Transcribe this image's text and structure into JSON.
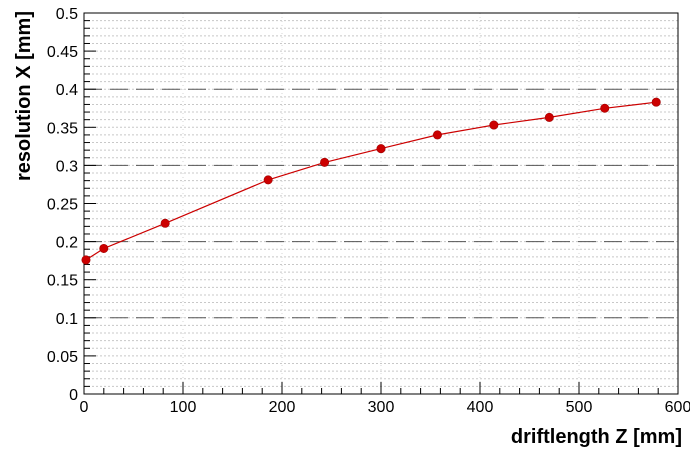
{
  "chart_data": {
    "type": "line",
    "title": "",
    "xlabel": "driftlength Z [mm]",
    "ylabel": "resolution X [mm]",
    "xlim": [
      0,
      600
    ],
    "ylim": [
      0,
      0.5
    ],
    "x_ticks": [
      0,
      100,
      200,
      300,
      400,
      500,
      600
    ],
    "x_tick_labels": [
      "0",
      "100",
      "200",
      "300",
      "400",
      "500",
      "600"
    ],
    "y_ticks": [
      0,
      0.05,
      0.1,
      0.15,
      0.2,
      0.25,
      0.3,
      0.35,
      0.4,
      0.45,
      0.5
    ],
    "y_tick_labels": [
      "0",
      "0.05",
      "0.1",
      "0.15",
      "0.2",
      "0.25",
      "0.3",
      "0.35",
      "0.4",
      "0.45",
      "0.5"
    ],
    "y_major_dashed_lines": [
      0.1,
      0.2,
      0.3,
      0.4
    ],
    "grid": true,
    "series": [
      {
        "color": "#cc0000",
        "x": [
          2,
          20,
          82,
          186,
          243,
          300,
          357,
          414,
          470,
          526,
          578
        ],
        "y": [
          0.176,
          0.191,
          0.224,
          0.281,
          0.304,
          0.322,
          0.34,
          0.353,
          0.363,
          0.375,
          0.383
        ]
      }
    ]
  }
}
